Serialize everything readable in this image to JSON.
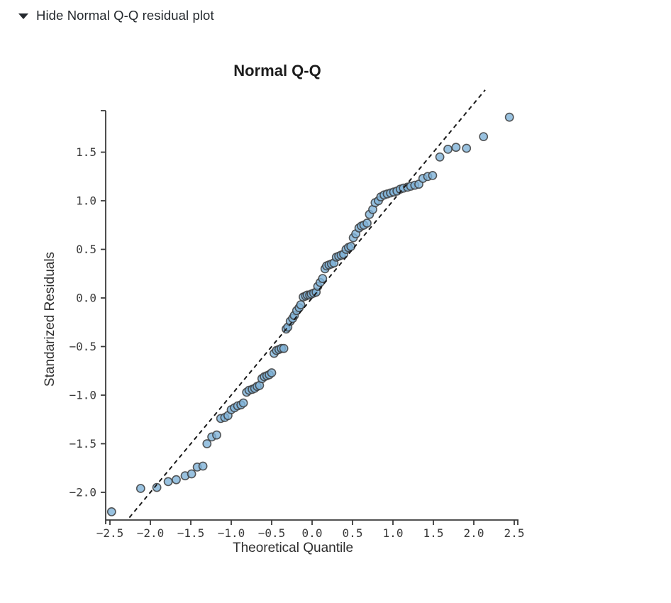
{
  "header": {
    "toggle_label": "Hide Normal Q-Q residual plot",
    "icon": "caret-down-icon",
    "state": "expanded"
  },
  "colors": {
    "point_fill": "#7fb3d8",
    "point_stroke": "#3d3d3d",
    "axis": "#3a3a3a",
    "reference_line": "#1a1a1a",
    "text": "#24292e"
  },
  "chart_data": {
    "type": "scatter",
    "title": "Normal Q-Q",
    "xlabel": "Theoretical Quantile",
    "ylabel": "Standarized Residuals",
    "grid": false,
    "legend": null,
    "xlim": [
      -2.55,
      2.55
    ],
    "ylim": [
      -2.33,
      1.93
    ],
    "x_ticks": [
      -2.5,
      -2.0,
      -1.5,
      -1.0,
      -0.5,
      0.0,
      0.5,
      1.0,
      1.5,
      2.0,
      2.5
    ],
    "x_tick_labels": [
      "−2.5",
      "−2.0",
      "−1.5",
      "−1.0",
      "−0.5",
      "0.0",
      "0.5",
      "1.0",
      "1.5",
      "2.0",
      "2.5"
    ],
    "y_ticks": [
      1.5,
      1.0,
      0.5,
      0.0,
      -0.5,
      -1.0,
      -1.5,
      -2.0
    ],
    "y_tick_labels": [
      "1.5",
      "1.0",
      "0.5",
      "0.0",
      "−0.5",
      "−1.0",
      "−1.5",
      "−2.0"
    ],
    "reference_line": {
      "style": "dashed",
      "slope": 1,
      "intercept": 0,
      "t_range": [
        -2.26,
        2.14
      ]
    },
    "point_style": {
      "radius": 5.6,
      "fill": "#7fb3d8",
      "fill_opacity": 0.8,
      "stroke": "#3d3d3d",
      "stroke_width": 1.6,
      "stroke_opacity": 0.85
    },
    "points": [
      [
        -2.48,
        -2.2
      ],
      [
        -2.12,
        -1.96
      ],
      [
        -1.92,
        -1.95
      ],
      [
        -1.78,
        -1.89
      ],
      [
        -1.68,
        -1.87
      ],
      [
        -1.57,
        -1.83
      ],
      [
        -1.49,
        -1.81
      ],
      [
        -1.42,
        -1.74
      ],
      [
        -1.35,
        -1.73
      ],
      [
        -1.3,
        -1.5
      ],
      [
        -1.24,
        -1.43
      ],
      [
        -1.18,
        -1.41
      ],
      [
        -1.13,
        -1.24
      ],
      [
        -1.08,
        -1.23
      ],
      [
        -1.04,
        -1.21
      ],
      [
        -1.0,
        -1.15
      ],
      [
        -0.96,
        -1.13
      ],
      [
        -0.92,
        -1.11
      ],
      [
        -0.88,
        -1.1
      ],
      [
        -0.85,
        -1.08
      ],
      [
        -0.81,
        -0.97
      ],
      [
        -0.78,
        -0.95
      ],
      [
        -0.74,
        -0.94
      ],
      [
        -0.71,
        -0.93
      ],
      [
        -0.68,
        -0.91
      ],
      [
        -0.65,
        -0.9
      ],
      [
        -0.62,
        -0.83
      ],
      [
        -0.59,
        -0.81
      ],
      [
        -0.56,
        -0.8
      ],
      [
        -0.53,
        -0.79
      ],
      [
        -0.5,
        -0.77
      ],
      [
        -0.47,
        -0.57
      ],
      [
        -0.44,
        -0.54
      ],
      [
        -0.41,
        -0.53
      ],
      [
        -0.38,
        -0.52
      ],
      [
        -0.35,
        -0.52
      ],
      [
        -0.32,
        -0.32
      ],
      [
        -0.3,
        -0.3
      ],
      [
        -0.27,
        -0.24
      ],
      [
        -0.24,
        -0.21
      ],
      [
        -0.22,
        -0.18
      ],
      [
        -0.19,
        -0.13
      ],
      [
        -0.16,
        -0.1
      ],
      [
        -0.14,
        -0.07
      ],
      [
        -0.11,
        0.01
      ],
      [
        -0.08,
        0.02
      ],
      [
        -0.06,
        0.03
      ],
      [
        -0.03,
        0.03
      ],
      [
        -0.01,
        0.04
      ],
      [
        0.02,
        0.05
      ],
      [
        0.05,
        0.06
      ],
      [
        0.07,
        0.12
      ],
      [
        0.1,
        0.16
      ],
      [
        0.13,
        0.2
      ],
      [
        0.16,
        0.3
      ],
      [
        0.18,
        0.33
      ],
      [
        0.21,
        0.34
      ],
      [
        0.24,
        0.35
      ],
      [
        0.27,
        0.36
      ],
      [
        0.3,
        0.42
      ],
      [
        0.33,
        0.43
      ],
      [
        0.36,
        0.44
      ],
      [
        0.39,
        0.45
      ],
      [
        0.42,
        0.5
      ],
      [
        0.45,
        0.52
      ],
      [
        0.48,
        0.53
      ],
      [
        0.51,
        0.62
      ],
      [
        0.54,
        0.66
      ],
      [
        0.58,
        0.72
      ],
      [
        0.61,
        0.74
      ],
      [
        0.64,
        0.75
      ],
      [
        0.68,
        0.77
      ],
      [
        0.71,
        0.86
      ],
      [
        0.75,
        0.91
      ],
      [
        0.78,
        0.98
      ],
      [
        0.82,
        1.0
      ],
      [
        0.85,
        1.04
      ],
      [
        0.89,
        1.06
      ],
      [
        0.93,
        1.07
      ],
      [
        0.97,
        1.08
      ],
      [
        1.01,
        1.09
      ],
      [
        1.05,
        1.1
      ],
      [
        1.09,
        1.12
      ],
      [
        1.13,
        1.13
      ],
      [
        1.18,
        1.14
      ],
      [
        1.22,
        1.15
      ],
      [
        1.27,
        1.16
      ],
      [
        1.32,
        1.17
      ],
      [
        1.37,
        1.23
      ],
      [
        1.43,
        1.25
      ],
      [
        1.49,
        1.26
      ],
      [
        1.58,
        1.45
      ],
      [
        1.68,
        1.53
      ],
      [
        1.78,
        1.55
      ],
      [
        1.91,
        1.54
      ],
      [
        2.12,
        1.66
      ],
      [
        2.44,
        1.86
      ]
    ]
  }
}
